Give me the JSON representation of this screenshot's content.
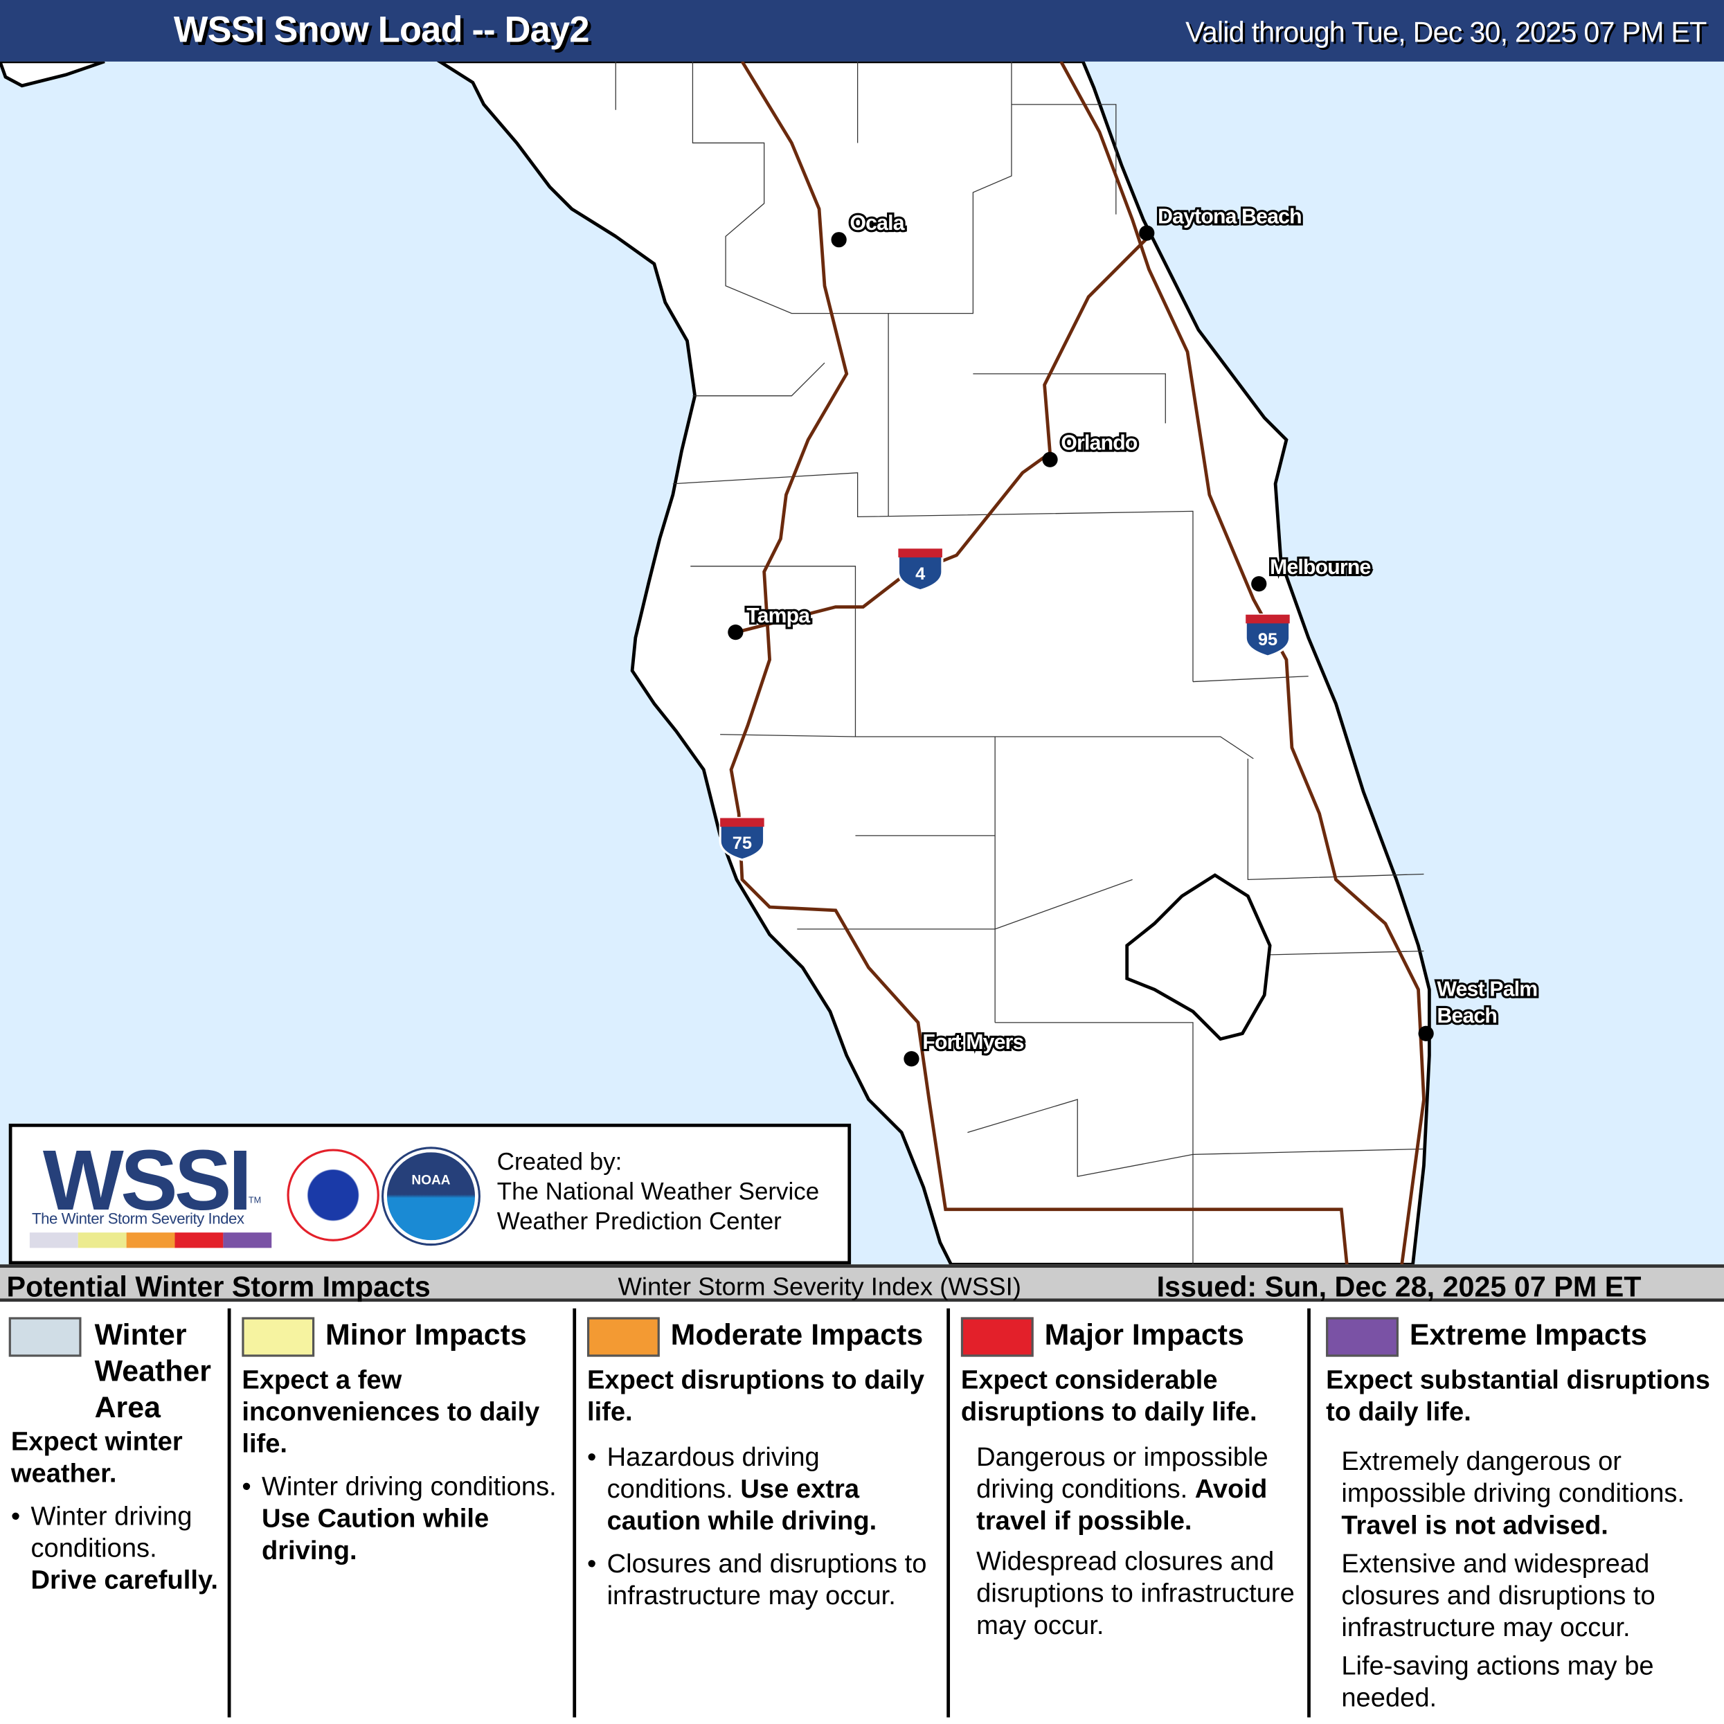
{
  "header": {
    "title": "WSSI Snow Load -- Day2",
    "valid": "Valid through Tue, Dec 30, 2025 07 PM ET"
  },
  "map": {
    "water_color": "#dcefff",
    "land_color": "#ffffff",
    "road_color": "#6b2a0d",
    "cities": [
      "Ocala",
      "Daytona Beach",
      "Orlando",
      "Melbourne",
      "Tampa",
      "West Palm",
      "Beach",
      "Fort Myers"
    ],
    "interstates": [
      "4",
      "95",
      "75"
    ]
  },
  "credit": {
    "logo_text": "WSSI",
    "logo_tm": "TM",
    "logo_subtitle": "The Winter Storm Severity Index",
    "nws_logo": "NATIONAL WEATHER SERVICE",
    "noaa_logo": "NOAA",
    "created_by": "Created by:",
    "org1": "The National Weather Service",
    "org2": "Weather Prediction Center",
    "scale_colors": [
      "#dcdbe8",
      "#eceb8f",
      "#f39a33",
      "#e3202a",
      "#7a52a5"
    ]
  },
  "band": {
    "title": "Potential Winter Storm Impacts",
    "index": "Winter Storm Severity Index (WSSI)",
    "issued": "Issued: Sun, Dec 28, 2025 07 PM ET"
  },
  "legend": [
    {
      "color": "#d0dde6",
      "title": "Winter Weather Area",
      "head": "Expect winter weather.",
      "p1": "Winter driving conditions.",
      "p1b": "Drive carefully."
    },
    {
      "color": "#f6f3a0",
      "title": "Minor Impacts",
      "head": "Expect a few inconveniences to daily life.",
      "p1": "Winter driving conditions.",
      "p1b": "Use Caution while driving."
    },
    {
      "color": "#f39a33",
      "title": "Moderate Impacts",
      "head": "Expect disruptions to daily life.",
      "p1": "Hazardous driving conditions.",
      "p1b": "Use extra caution while driving.",
      "p2": "Closures and disruptions to infrastructure may occur."
    },
    {
      "color": "#e3202a",
      "title": "Major Impacts",
      "head": "Expect considerable disruptions to daily life.",
      "p1": "Dangerous or impossible driving conditions.",
      "p1b": "Avoid travel if possible.",
      "p2": "Widespread closures and disruptions to infrastructure may occur."
    },
    {
      "color": "#7a52a5",
      "title": "Extreme Impacts",
      "head": "Expect substantial disruptions to daily life.",
      "p1": "Extremely dangerous or impossible driving conditions.",
      "p1b": "Travel is not advised.",
      "p2": "Extensive and widespread closures and disruptions to infrastructure may occur.",
      "p3": "Life-saving actions may be needed."
    }
  ]
}
